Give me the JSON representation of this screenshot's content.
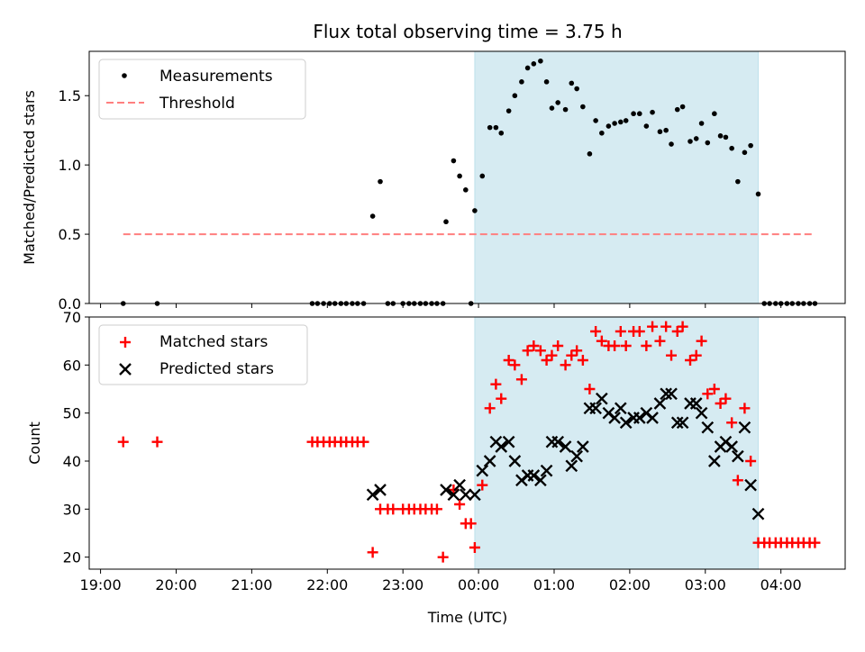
{
  "chart_data": [
    {
      "type": "scatter",
      "title": "Flux total observing time = 3.75 h",
      "ylabel": "Matched/Predicted stars",
      "xlabel": "",
      "x_unit": "hours since 19:00 UTC",
      "xlim": [
        -0.15,
        9.85
      ],
      "ylim": [
        0,
        1.82
      ],
      "yticks": [
        0.0,
        0.5,
        1.0,
        1.5
      ],
      "ytick_labels": [
        "0.0",
        "0.5",
        "1.0",
        "1.5"
      ],
      "shaded_region": {
        "x0": 4.95,
        "x1": 8.7,
        "color": "#add8e6"
      },
      "legend": {
        "position": "top-left",
        "entries": [
          "Measurements",
          "Threshold"
        ]
      },
      "series": [
        {
          "name": "Measurements",
          "marker": "dot",
          "color": "#000000",
          "points": [
            [
              0.3,
              0
            ],
            [
              0.75,
              0
            ],
            [
              2.8,
              0
            ],
            [
              2.87,
              0
            ],
            [
              2.95,
              0
            ],
            [
              3.03,
              0
            ],
            [
              3.1,
              0
            ],
            [
              3.18,
              0
            ],
            [
              3.25,
              0
            ],
            [
              3.33,
              0
            ],
            [
              3.4,
              0
            ],
            [
              3.48,
              0
            ],
            [
              3.6,
              0.63
            ],
            [
              3.7,
              0.88
            ],
            [
              3.8,
              0
            ],
            [
              3.87,
              0
            ],
            [
              4.0,
              0
            ],
            [
              4.08,
              0
            ],
            [
              4.15,
              0
            ],
            [
              4.23,
              0
            ],
            [
              4.3,
              0
            ],
            [
              4.38,
              0
            ],
            [
              4.45,
              0
            ],
            [
              4.53,
              0
            ],
            [
              4.57,
              0.59
            ],
            [
              4.67,
              1.03
            ],
            [
              4.75,
              0.92
            ],
            [
              4.83,
              0.82
            ],
            [
              4.9,
              0
            ],
            [
              4.95,
              0.67
            ],
            [
              5.05,
              0.92
            ],
            [
              5.15,
              1.27
            ],
            [
              5.23,
              1.27
            ],
            [
              5.3,
              1.23
            ],
            [
              5.4,
              1.39
            ],
            [
              5.48,
              1.5
            ],
            [
              5.57,
              1.6
            ],
            [
              5.65,
              1.7
            ],
            [
              5.73,
              1.73
            ],
            [
              5.82,
              1.75
            ],
            [
              5.9,
              1.6
            ],
            [
              5.97,
              1.41
            ],
            [
              6.05,
              1.45
            ],
            [
              6.15,
              1.4
            ],
            [
              6.23,
              1.59
            ],
            [
              6.3,
              1.55
            ],
            [
              6.38,
              1.42
            ],
            [
              6.47,
              1.08
            ],
            [
              6.55,
              1.32
            ],
            [
              6.63,
              1.23
            ],
            [
              6.72,
              1.28
            ],
            [
              6.8,
              1.3
            ],
            [
              6.88,
              1.31
            ],
            [
              6.95,
              1.32
            ],
            [
              7.05,
              1.37
            ],
            [
              7.13,
              1.37
            ],
            [
              7.22,
              1.28
            ],
            [
              7.3,
              1.38
            ],
            [
              7.4,
              1.24
            ],
            [
              7.48,
              1.25
            ],
            [
              7.55,
              1.15
            ],
            [
              7.63,
              1.4
            ],
            [
              7.7,
              1.42
            ],
            [
              7.8,
              1.17
            ],
            [
              7.88,
              1.19
            ],
            [
              7.95,
              1.3
            ],
            [
              8.03,
              1.16
            ],
            [
              8.12,
              1.37
            ],
            [
              8.2,
              1.21
            ],
            [
              8.27,
              1.2
            ],
            [
              8.35,
              1.12
            ],
            [
              8.43,
              0.88
            ],
            [
              8.52,
              1.09
            ],
            [
              8.6,
              1.14
            ],
            [
              8.7,
              0.79
            ],
            [
              8.78,
              0
            ],
            [
              8.85,
              0
            ],
            [
              8.93,
              0
            ],
            [
              9.0,
              0
            ],
            [
              9.08,
              0
            ],
            [
              9.15,
              0
            ],
            [
              9.23,
              0
            ],
            [
              9.3,
              0
            ],
            [
              9.38,
              0
            ],
            [
              9.45,
              0
            ]
          ]
        },
        {
          "name": "Threshold",
          "style": "dashed",
          "color": "#ff7f7f",
          "points": [
            [
              0.3,
              0.5
            ],
            [
              9.45,
              0.5
            ]
          ]
        }
      ]
    },
    {
      "type": "scatter",
      "title": "",
      "ylabel": "Count",
      "xlabel": "Time (UTC)",
      "x_unit": "hours since 19:00 UTC",
      "xlim": [
        -0.15,
        9.85
      ],
      "ylim": [
        17.5,
        70
      ],
      "yticks": [
        20,
        30,
        40,
        50,
        60,
        70
      ],
      "ytick_labels": [
        "20",
        "30",
        "40",
        "50",
        "60",
        "70"
      ],
      "xticks": [
        0,
        1,
        2,
        3,
        4,
        5,
        6,
        7,
        8,
        9
      ],
      "xtick_labels": [
        "19:00",
        "20:00",
        "21:00",
        "22:00",
        "23:00",
        "00:00",
        "01:00",
        "02:00",
        "03:00",
        "04:00"
      ],
      "shaded_region": {
        "x0": 4.95,
        "x1": 8.7,
        "color": "#add8e6"
      },
      "legend": {
        "position": "top-left",
        "entries": [
          "Matched stars",
          "Predicted stars"
        ]
      },
      "series": [
        {
          "name": "Matched stars",
          "marker": "plus",
          "color": "#ff0000",
          "points": [
            [
              0.3,
              44
            ],
            [
              0.75,
              44
            ],
            [
              2.8,
              44
            ],
            [
              2.87,
              44
            ],
            [
              2.95,
              44
            ],
            [
              3.03,
              44
            ],
            [
              3.1,
              44
            ],
            [
              3.18,
              44
            ],
            [
              3.25,
              44
            ],
            [
              3.33,
              44
            ],
            [
              3.4,
              44
            ],
            [
              3.48,
              44
            ],
            [
              3.6,
              21
            ],
            [
              3.7,
              30
            ],
            [
              3.8,
              30
            ],
            [
              3.87,
              30
            ],
            [
              4.0,
              30
            ],
            [
              4.08,
              30
            ],
            [
              4.15,
              30
            ],
            [
              4.23,
              30
            ],
            [
              4.3,
              30
            ],
            [
              4.38,
              30
            ],
            [
              4.45,
              30
            ],
            [
              4.53,
              20
            ],
            [
              4.67,
              34
            ],
            [
              4.75,
              31
            ],
            [
              4.83,
              27
            ],
            [
              4.9,
              27
            ],
            [
              4.95,
              22
            ],
            [
              5.05,
              35
            ],
            [
              5.15,
              51
            ],
            [
              5.23,
              56
            ],
            [
              5.3,
              53
            ],
            [
              5.4,
              61
            ],
            [
              5.48,
              60
            ],
            [
              5.57,
              57
            ],
            [
              5.65,
              63
            ],
            [
              5.73,
              64
            ],
            [
              5.82,
              63
            ],
            [
              5.9,
              61
            ],
            [
              5.97,
              62
            ],
            [
              6.05,
              64
            ],
            [
              6.15,
              60
            ],
            [
              6.23,
              62
            ],
            [
              6.3,
              63
            ],
            [
              6.38,
              61
            ],
            [
              6.47,
              55
            ],
            [
              6.55,
              67
            ],
            [
              6.63,
              65
            ],
            [
              6.72,
              64
            ],
            [
              6.8,
              64
            ],
            [
              6.88,
              67
            ],
            [
              6.95,
              64
            ],
            [
              7.05,
              67
            ],
            [
              7.13,
              67
            ],
            [
              7.22,
              64
            ],
            [
              7.3,
              68
            ],
            [
              7.4,
              65
            ],
            [
              7.48,
              68
            ],
            [
              7.55,
              62
            ],
            [
              7.63,
              67
            ],
            [
              7.7,
              68
            ],
            [
              7.8,
              61
            ],
            [
              7.88,
              62
            ],
            [
              7.95,
              65
            ],
            [
              8.03,
              54
            ],
            [
              8.12,
              55
            ],
            [
              8.2,
              52
            ],
            [
              8.27,
              53
            ],
            [
              8.35,
              48
            ],
            [
              8.43,
              36
            ],
            [
              8.52,
              51
            ],
            [
              8.6,
              40
            ],
            [
              8.7,
              23
            ],
            [
              8.78,
              23
            ],
            [
              8.85,
              23
            ],
            [
              8.93,
              23
            ],
            [
              9.0,
              23
            ],
            [
              9.08,
              23
            ],
            [
              9.15,
              23
            ],
            [
              9.23,
              23
            ],
            [
              9.3,
              23
            ],
            [
              9.38,
              23
            ],
            [
              9.45,
              23
            ]
          ]
        },
        {
          "name": "Predicted stars",
          "marker": "x",
          "color": "#000000",
          "points": [
            [
              3.6,
              33
            ],
            [
              3.7,
              34
            ],
            [
              4.57,
              34
            ],
            [
              4.67,
              33
            ],
            [
              4.75,
              35
            ],
            [
              4.83,
              33
            ],
            [
              4.95,
              33
            ],
            [
              5.05,
              38
            ],
            [
              5.15,
              40
            ],
            [
              5.23,
              44
            ],
            [
              5.3,
              43
            ],
            [
              5.4,
              44
            ],
            [
              5.48,
              40
            ],
            [
              5.57,
              36
            ],
            [
              5.65,
              37
            ],
            [
              5.73,
              37
            ],
            [
              5.82,
              36
            ],
            [
              5.9,
              38
            ],
            [
              5.97,
              44
            ],
            [
              6.05,
              44
            ],
            [
              6.15,
              43
            ],
            [
              6.23,
              39
            ],
            [
              6.3,
              41
            ],
            [
              6.38,
              43
            ],
            [
              6.47,
              51
            ],
            [
              6.55,
              51
            ],
            [
              6.63,
              53
            ],
            [
              6.72,
              50
            ],
            [
              6.8,
              49
            ],
            [
              6.88,
              51
            ],
            [
              6.95,
              48
            ],
            [
              7.05,
              49
            ],
            [
              7.13,
              49
            ],
            [
              7.22,
              50
            ],
            [
              7.3,
              49
            ],
            [
              7.4,
              52
            ],
            [
              7.48,
              54
            ],
            [
              7.55,
              54
            ],
            [
              7.63,
              48
            ],
            [
              7.7,
              48
            ],
            [
              7.8,
              52
            ],
            [
              7.88,
              52
            ],
            [
              7.95,
              50
            ],
            [
              8.03,
              47
            ],
            [
              8.12,
              40
            ],
            [
              8.2,
              43
            ],
            [
              8.27,
              44
            ],
            [
              8.35,
              43
            ],
            [
              8.43,
              41
            ],
            [
              8.52,
              47
            ],
            [
              8.6,
              35
            ],
            [
              8.7,
              29
            ]
          ]
        }
      ]
    }
  ]
}
